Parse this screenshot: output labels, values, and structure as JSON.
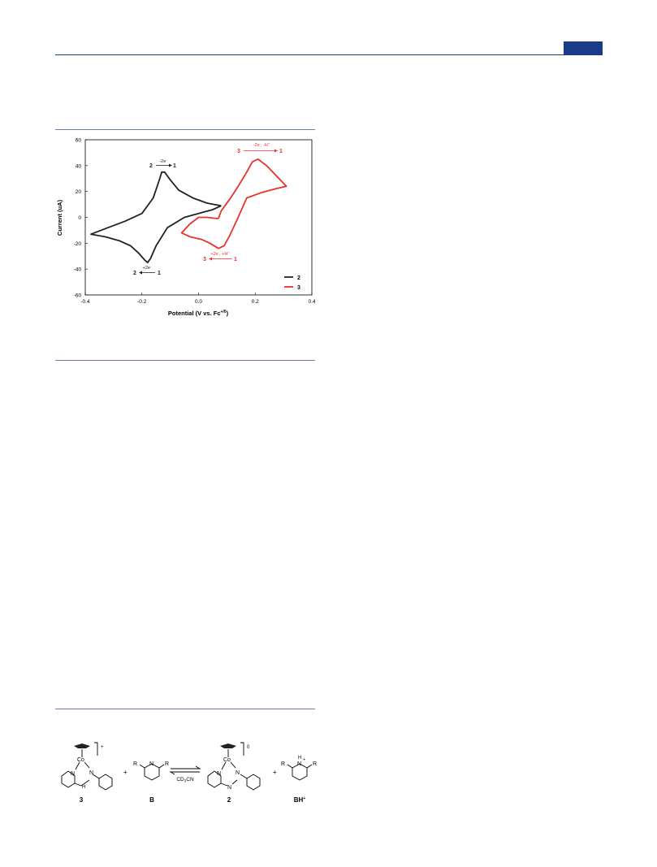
{
  "chart_data": {
    "type": "line",
    "xlabel": "Potential (V vs. Fc",
    "xlabel_sup": "+/0",
    "xlabel_close": ")",
    "ylabel": "Current (uA)",
    "xlim": [
      -0.4,
      0.4
    ],
    "ylim": [
      -60,
      60
    ],
    "xticks": [
      "-0.4",
      "-0.2",
      "0.0",
      "0.2",
      "0.4"
    ],
    "xtick_values": [
      -0.4,
      -0.2,
      0.0,
      0.2,
      0.4
    ],
    "yticks": [
      "60",
      "40",
      "20",
      "0",
      "-20",
      "-40",
      "-60"
    ],
    "ytick_values": [
      60,
      40,
      20,
      0,
      -20,
      -40,
      -60
    ],
    "legend": [
      {
        "name": "2",
        "color": "#222222"
      },
      {
        "name": "3",
        "color": "#e8312a"
      }
    ],
    "series": [
      {
        "name": "2",
        "color": "#222222",
        "x": [
          0.08,
          0.03,
          -0.02,
          -0.07,
          -0.1,
          -0.12,
          -0.13,
          -0.14,
          -0.16,
          -0.2,
          -0.26,
          -0.32,
          -0.38,
          -0.33,
          -0.28,
          -0.24,
          -0.21,
          -0.19,
          -0.18,
          -0.17,
          -0.15,
          -0.11,
          -0.05,
          0.0,
          0.05,
          0.08
        ],
        "y": [
          9,
          11,
          15,
          21,
          29,
          35,
          35,
          28,
          15,
          3,
          -3,
          -8,
          -13,
          -15,
          -18,
          -22,
          -28,
          -33,
          -35,
          -32,
          -22,
          -8,
          0,
          3,
          6,
          9
        ]
      },
      {
        "name": "3",
        "color": "#e8312a",
        "x": [
          0.07,
          0.03,
          0.0,
          -0.03,
          -0.06,
          -0.03,
          0.01,
          0.04,
          0.07,
          0.09,
          0.11,
          0.14,
          0.17,
          0.22,
          0.27,
          0.31,
          0.28,
          0.24,
          0.21,
          0.19,
          0.17,
          0.14,
          0.11,
          0.08,
          0.07
        ],
        "y": [
          -1,
          0,
          0,
          -5,
          -12,
          -15,
          -17,
          -20,
          -24,
          -22,
          -14,
          0,
          15,
          19,
          22,
          24,
          31,
          40,
          45,
          43,
          35,
          24,
          14,
          5,
          -1
        ]
      }
    ],
    "annotations": [
      {
        "top": "-2e",
        "top_sup": "-",
        "left": "2",
        "right": "1",
        "series": "2",
        "arrow": "right"
      },
      {
        "top": "+2e",
        "top_sup": "-",
        "left": "2",
        "right": "1",
        "series": "2",
        "arrow": "left"
      },
      {
        "top": "-2e",
        "top_sup": "-",
        "top_tail": ", -H",
        "top_tail_sup": "+",
        "left": "3",
        "right": "1",
        "series": "3",
        "arrow": "right"
      },
      {
        "top": "+2e",
        "top_sup": "-",
        "top_tail": ", +H",
        "top_tail_sup": "+",
        "left": "3",
        "right": "1",
        "series": "3",
        "arrow": "left"
      }
    ]
  },
  "scheme": {
    "charge_left": "+",
    "charge_right": "0",
    "co": "Co",
    "n": "N",
    "h": "H",
    "r": "R",
    "plus": "+",
    "solvent": "CD",
    "solvent_sub": "3",
    "solvent_tail": "CN",
    "label_3": "3",
    "label_b": "B",
    "label_2": "2",
    "label_bh": "BH",
    "label_bh_sup": "+"
  }
}
